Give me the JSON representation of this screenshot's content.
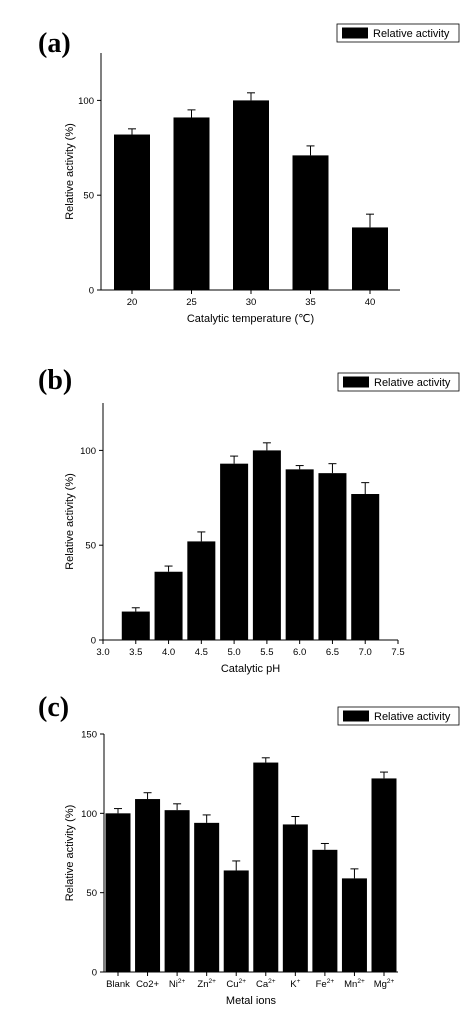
{
  "chart_data": [
    {
      "panel_label": "(a)",
      "type": "bar",
      "categories": [
        "20",
        "25",
        "30",
        "35",
        "40"
      ],
      "values": [
        82,
        91,
        100,
        71,
        33
      ],
      "errors": [
        3,
        4,
        4,
        5,
        7
      ],
      "series": [
        {
          "name": "Relative activity",
          "color": "#000000"
        }
      ],
      "xlabel": "Catalytic temperature (℃)",
      "ylabel": "Relative activity (%)",
      "ylim": [
        0,
        125
      ],
      "yticks": [
        0,
        50,
        100
      ],
      "grid": false,
      "legend": "top-right"
    },
    {
      "panel_label": "(b)",
      "type": "bar",
      "x": [
        3.5,
        4.0,
        4.5,
        5.0,
        5.5,
        6.0,
        6.5,
        7.0
      ],
      "values": [
        15,
        36,
        52,
        93,
        100,
        90,
        88,
        77
      ],
      "errors": [
        2,
        3,
        5,
        4,
        4,
        2,
        5,
        6
      ],
      "xticks": [
        "3.0",
        "3.5",
        "4.0",
        "4.5",
        "5.0",
        "5.5",
        "6.0",
        "6.5",
        "7.0",
        "7.5"
      ],
      "xlim": [
        3.0,
        7.5
      ],
      "series": [
        {
          "name": "Relative activity",
          "color": "#000000"
        }
      ],
      "xlabel": "Catalytic pH",
      "ylabel": "Relative activity (%)",
      "ylim": [
        0,
        125
      ],
      "yticks": [
        0,
        50,
        100
      ],
      "grid": false,
      "legend": "top-right"
    },
    {
      "panel_label": "(c)",
      "type": "bar",
      "categories": [
        {
          "base": "Blank",
          "sup": ""
        },
        {
          "base": "Co2+",
          "sup": ""
        },
        {
          "base": "Ni",
          "sup": "2+"
        },
        {
          "base": "Zn",
          "sup": "2+"
        },
        {
          "base": "Cu",
          "sup": "2+"
        },
        {
          "base": "Ca",
          "sup": "2+"
        },
        {
          "base": "K",
          "sup": "+"
        },
        {
          "base": "Fe",
          "sup": "2+"
        },
        {
          "base": "Mn",
          "sup": "2+"
        },
        {
          "base": "Mg",
          "sup": "2+"
        }
      ],
      "values": [
        100,
        109,
        102,
        94,
        64,
        132,
        93,
        77,
        59,
        122
      ],
      "errors": [
        3,
        4,
        4,
        5,
        6,
        3,
        5,
        4,
        6,
        4
      ],
      "series": [
        {
          "name": "Relative activity",
          "color": "#000000"
        }
      ],
      "xlabel": "Metal ions",
      "ylabel": "Relative activity (%)",
      "ylim": [
        0,
        150
      ],
      "yticks": [
        0,
        50,
        100,
        150
      ],
      "grid": false,
      "legend": "top-right"
    }
  ]
}
